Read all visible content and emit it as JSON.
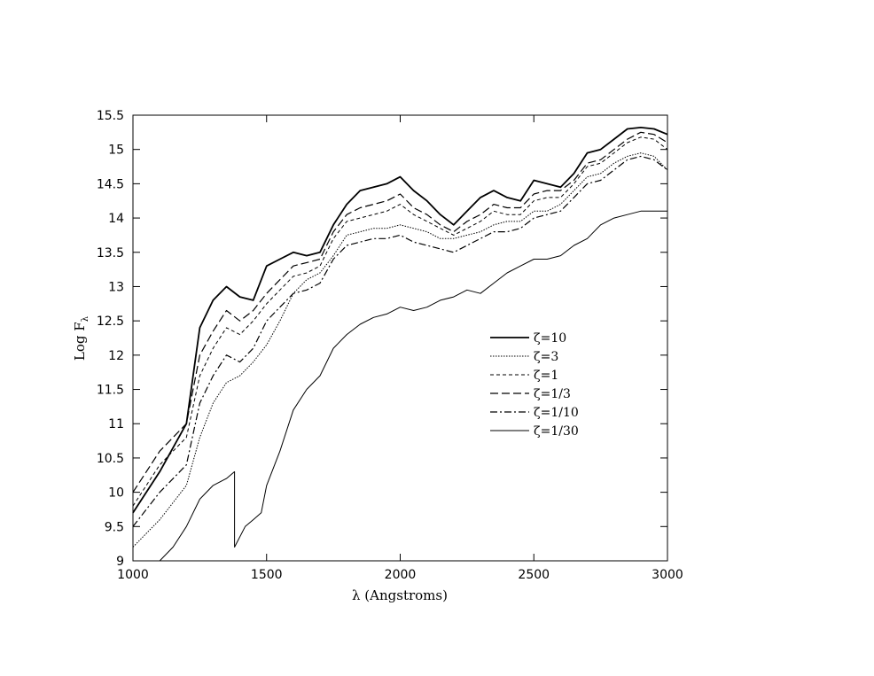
{
  "chart_data": {
    "type": "line",
    "title": "",
    "xlabel": "λ (Angstroms)",
    "ylabel_main": "Log F",
    "ylabel_sub": "λ",
    "xlim": [
      1000,
      3000
    ],
    "ylim": [
      9,
      15.5
    ],
    "x_ticks": [
      1000,
      1500,
      2000,
      2500,
      3000
    ],
    "y_ticks": [
      9,
      9.5,
      10,
      10.5,
      11,
      11.5,
      12,
      12.5,
      13,
      13.5,
      14,
      14.5,
      15,
      15.5
    ],
    "x_tick_labels": [
      "1000",
      "1500",
      "2000",
      "2500",
      "3000"
    ],
    "y_tick_labels": [
      "9",
      "9.5",
      "10",
      "10.5",
      "11",
      "11.5",
      "12",
      "12.5",
      "13",
      "13.5",
      "14",
      "14.5",
      "15",
      "15.5"
    ],
    "grid": false,
    "legend_position": "right-middle",
    "series": [
      {
        "name": "ζ=10",
        "style": "solid-thick",
        "x": [
          1000,
          1100,
          1200,
          1250,
          1300,
          1350,
          1400,
          1450,
          1500,
          1550,
          1600,
          1650,
          1700,
          1750,
          1800,
          1850,
          1900,
          1950,
          2000,
          2050,
          2100,
          2150,
          2200,
          2250,
          2300,
          2350,
          2400,
          2450,
          2500,
          2550,
          2600,
          2650,
          2700,
          2750,
          2800,
          2850,
          2900,
          2950,
          3000
        ],
        "values": [
          9.7,
          10.3,
          11.0,
          12.4,
          12.8,
          13.0,
          12.85,
          12.8,
          13.3,
          13.4,
          13.5,
          13.45,
          13.5,
          13.9,
          14.2,
          14.4,
          14.45,
          14.5,
          14.6,
          14.4,
          14.25,
          14.05,
          13.9,
          14.1,
          14.3,
          14.4,
          14.3,
          14.25,
          14.55,
          14.5,
          14.45,
          14.65,
          14.95,
          15.0,
          15.15,
          15.3,
          15.32,
          15.3,
          15.22
        ]
      },
      {
        "name": "ζ=3",
        "style": "dotted",
        "x": [
          1000,
          1100,
          1200,
          1250,
          1300,
          1350,
          1400,
          1450,
          1500,
          1550,
          1600,
          1650,
          1700,
          1750,
          1800,
          1850,
          1900,
          1950,
          2000,
          2050,
          2100,
          2150,
          2200,
          2250,
          2300,
          2350,
          2400,
          2450,
          2500,
          2550,
          2600,
          2650,
          2700,
          2750,
          2800,
          2850,
          2900,
          2950,
          3000
        ],
        "values": [
          9.2,
          9.6,
          10.1,
          10.8,
          11.3,
          11.6,
          11.7,
          11.9,
          12.15,
          12.5,
          12.9,
          13.1,
          13.2,
          13.45,
          13.75,
          13.8,
          13.85,
          13.85,
          13.9,
          13.85,
          13.8,
          13.7,
          13.7,
          13.75,
          13.8,
          13.9,
          13.95,
          13.95,
          14.1,
          14.1,
          14.2,
          14.4,
          14.6,
          14.65,
          14.8,
          14.9,
          14.95,
          14.9,
          14.7
        ]
      },
      {
        "name": "ζ=1",
        "style": "short-dash",
        "x": [
          1000,
          1100,
          1200,
          1250,
          1300,
          1350,
          1400,
          1450,
          1500,
          1550,
          1600,
          1650,
          1700,
          1750,
          1800,
          1850,
          1900,
          1950,
          2000,
          2050,
          2100,
          2150,
          2200,
          2250,
          2300,
          2350,
          2400,
          2450,
          2500,
          2550,
          2600,
          2650,
          2700,
          2750,
          2800,
          2850,
          2900,
          2950,
          3000
        ],
        "values": [
          9.8,
          10.4,
          10.8,
          11.7,
          12.1,
          12.4,
          12.3,
          12.5,
          12.75,
          12.95,
          13.15,
          13.2,
          13.3,
          13.7,
          13.95,
          14.0,
          14.05,
          14.1,
          14.2,
          14.05,
          13.95,
          13.85,
          13.75,
          13.85,
          13.95,
          14.1,
          14.05,
          14.05,
          14.25,
          14.3,
          14.3,
          14.5,
          14.75,
          14.8,
          14.95,
          15.1,
          15.18,
          15.15,
          15.0
        ]
      },
      {
        "name": "ζ=1/3",
        "style": "long-dash",
        "x": [
          1000,
          1100,
          1200,
          1250,
          1300,
          1350,
          1400,
          1450,
          1500,
          1550,
          1600,
          1650,
          1700,
          1750,
          1800,
          1850,
          1900,
          1950,
          2000,
          2050,
          2100,
          2150,
          2200,
          2250,
          2300,
          2350,
          2400,
          2450,
          2500,
          2550,
          2600,
          2650,
          2700,
          2750,
          2800,
          2850,
          2900,
          2950,
          3000
        ],
        "values": [
          10.0,
          10.6,
          11.0,
          12.0,
          12.35,
          12.65,
          12.5,
          12.65,
          12.9,
          13.1,
          13.3,
          13.35,
          13.4,
          13.8,
          14.05,
          14.15,
          14.2,
          14.25,
          14.35,
          14.15,
          14.05,
          13.9,
          13.8,
          13.95,
          14.05,
          14.2,
          14.15,
          14.15,
          14.35,
          14.4,
          14.4,
          14.55,
          14.8,
          14.85,
          15.0,
          15.15,
          15.25,
          15.22,
          15.1
        ]
      },
      {
        "name": "ζ=1/10",
        "style": "dash-dot",
        "x": [
          1000,
          1100,
          1200,
          1250,
          1300,
          1350,
          1400,
          1450,
          1500,
          1550,
          1600,
          1650,
          1700,
          1750,
          1800,
          1850,
          1900,
          1950,
          2000,
          2050,
          2100,
          2150,
          2200,
          2250,
          2300,
          2350,
          2400,
          2450,
          2500,
          2550,
          2600,
          2650,
          2700,
          2750,
          2800,
          2850,
          2900,
          2950,
          3000
        ],
        "values": [
          9.5,
          10.0,
          10.4,
          11.3,
          11.7,
          12.0,
          11.9,
          12.1,
          12.5,
          12.7,
          12.9,
          12.95,
          13.05,
          13.4,
          13.6,
          13.65,
          13.7,
          13.7,
          13.75,
          13.65,
          13.6,
          13.55,
          13.5,
          13.6,
          13.7,
          13.8,
          13.8,
          13.85,
          14.0,
          14.05,
          14.1,
          14.3,
          14.5,
          14.55,
          14.7,
          14.85,
          14.9,
          14.85,
          14.7
        ]
      },
      {
        "name": "ζ=1/30",
        "style": "solid-thin",
        "x": [
          1100,
          1150,
          1200,
          1250,
          1300,
          1350,
          1380,
          1380,
          1420,
          1450,
          1480,
          1500,
          1550,
          1600,
          1650,
          1700,
          1750,
          1800,
          1850,
          1900,
          1950,
          2000,
          2050,
          2100,
          2150,
          2200,
          2250,
          2300,
          2350,
          2400,
          2450,
          2500,
          2550,
          2600,
          2650,
          2700,
          2750,
          2800,
          2850,
          2900,
          2950,
          3000
        ],
        "values": [
          9.0,
          9.2,
          9.5,
          9.9,
          10.1,
          10.2,
          10.3,
          9.2,
          9.5,
          9.6,
          9.7,
          10.1,
          10.6,
          11.2,
          11.5,
          11.7,
          12.1,
          12.3,
          12.45,
          12.55,
          12.6,
          12.7,
          12.65,
          12.7,
          12.8,
          12.85,
          12.95,
          12.9,
          13.05,
          13.2,
          13.3,
          13.4,
          13.4,
          13.45,
          13.6,
          13.7,
          13.9,
          14.0,
          14.05,
          14.1,
          14.1,
          14.1
        ]
      }
    ]
  }
}
